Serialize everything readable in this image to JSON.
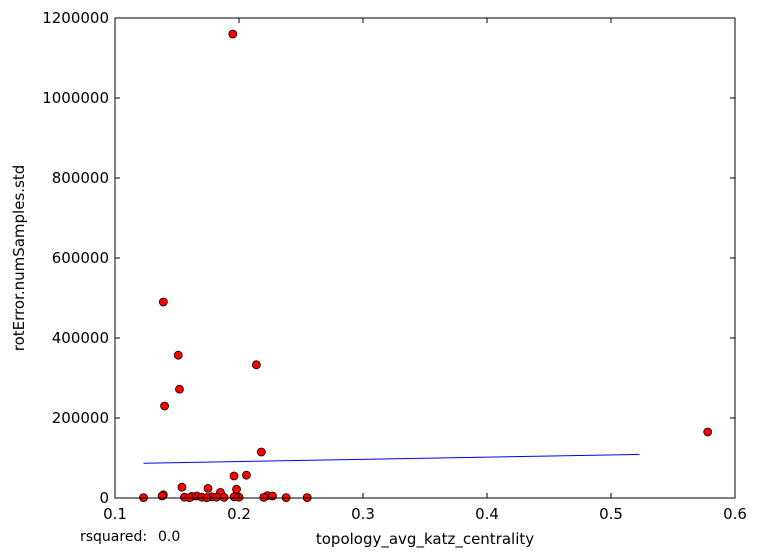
{
  "chart_data": {
    "type": "scatter",
    "xlabel": "topology_avg_katz_centrality",
    "ylabel": "rotError.numSamples.std",
    "xlim": [
      0.1,
      0.6
    ],
    "ylim": [
      0,
      1200000
    ],
    "xticks": [
      "0.1",
      "0.2",
      "0.3",
      "0.4",
      "0.5",
      "0.6"
    ],
    "yticks": [
      "0",
      "200000",
      "400000",
      "600000",
      "800000",
      "1000000",
      "1200000"
    ],
    "grid": false,
    "points": [
      {
        "x": 0.195,
        "y": 1160000
      },
      {
        "x": 0.139,
        "y": 490000
      },
      {
        "x": 0.151,
        "y": 357000
      },
      {
        "x": 0.214,
        "y": 333000
      },
      {
        "x": 0.152,
        "y": 272000
      },
      {
        "x": 0.14,
        "y": 230000
      },
      {
        "x": 0.578,
        "y": 165000
      },
      {
        "x": 0.218,
        "y": 115000
      },
      {
        "x": 0.206,
        "y": 57000
      },
      {
        "x": 0.196,
        "y": 55000
      },
      {
        "x": 0.154,
        "y": 27000
      },
      {
        "x": 0.175,
        "y": 24000
      },
      {
        "x": 0.198,
        "y": 22000
      },
      {
        "x": 0.185,
        "y": 14000
      },
      {
        "x": 0.139,
        "y": 8000
      },
      {
        "x": 0.138,
        "y": 5000
      },
      {
        "x": 0.223,
        "y": 6000
      },
      {
        "x": 0.227,
        "y": 5000
      },
      {
        "x": 0.166,
        "y": 5000
      },
      {
        "x": 0.162,
        "y": 4000
      },
      {
        "x": 0.156,
        "y": 2000
      },
      {
        "x": 0.123,
        "y": 1000
      },
      {
        "x": 0.17,
        "y": 2000
      },
      {
        "x": 0.178,
        "y": 3000
      },
      {
        "x": 0.182,
        "y": 2000
      },
      {
        "x": 0.188,
        "y": 1500
      },
      {
        "x": 0.196,
        "y": 3000
      },
      {
        "x": 0.2,
        "y": 2000
      },
      {
        "x": 0.238,
        "y": 1000
      },
      {
        "x": 0.255,
        "y": 1000
      },
      {
        "x": 0.16,
        "y": 1000
      },
      {
        "x": 0.174,
        "y": 800
      },
      {
        "x": 0.22,
        "y": 1500
      }
    ],
    "fit_line": {
      "x": [
        0.123,
        0.523
      ],
      "y": [
        87000,
        109000
      ]
    },
    "marker_color": "#ff0000",
    "line_color": "#0000ff"
  },
  "annotation": {
    "rsquared_label": "rsquared:",
    "rsquared_value": "0.0"
  }
}
